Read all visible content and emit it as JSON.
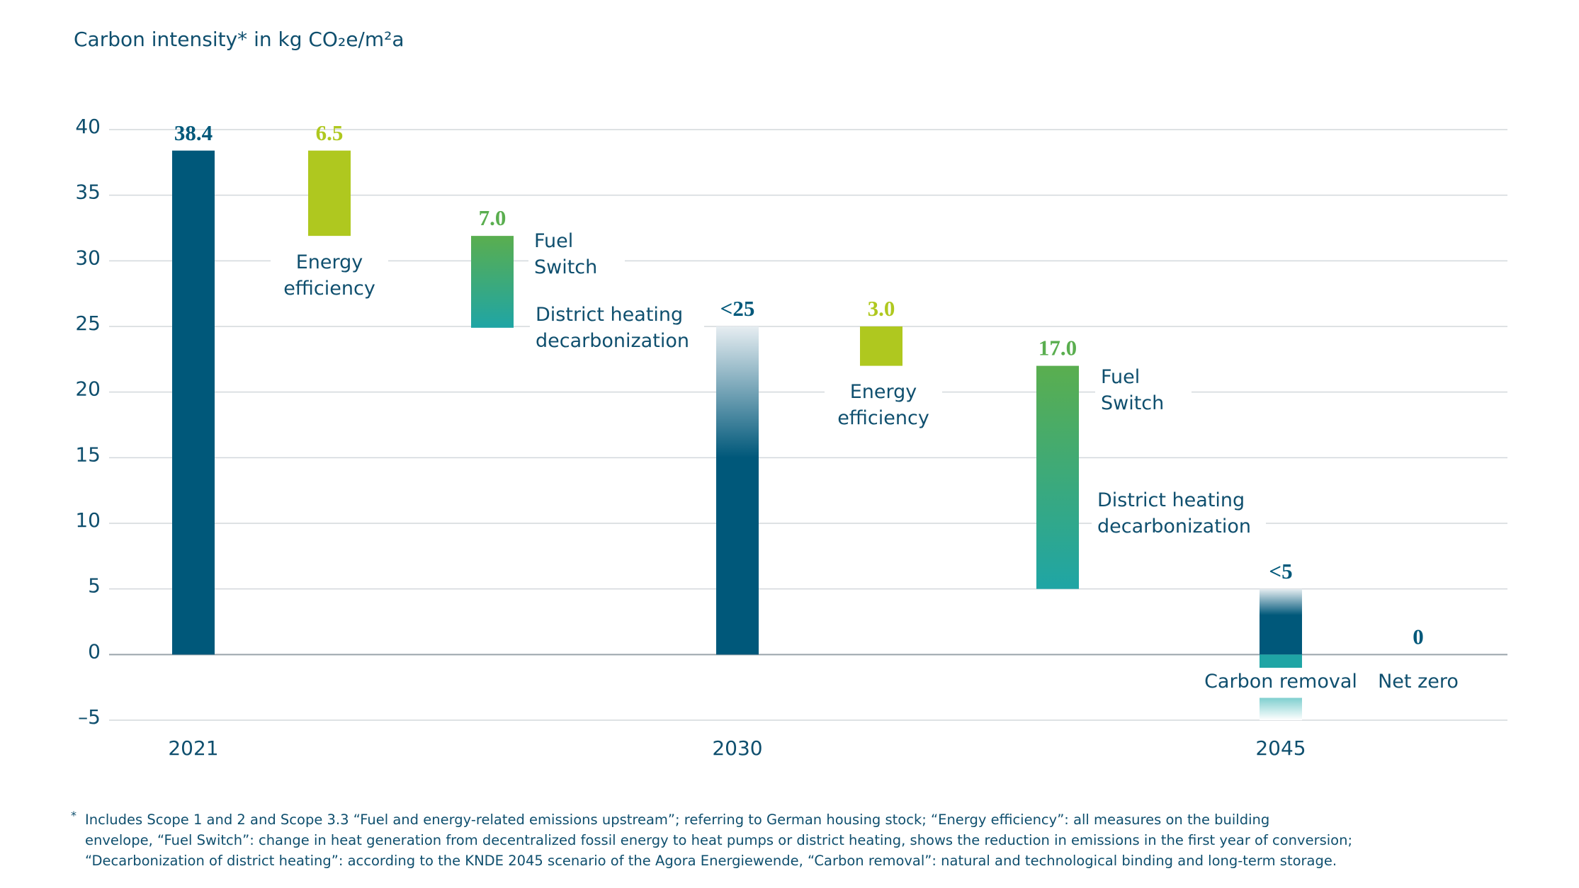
{
  "chart_data": {
    "type": "waterfall",
    "title": "Carbon intensity* in kg CO₂e/m²a",
    "categories": [
      "2021",
      null,
      null,
      "2030",
      null,
      null,
      "2045",
      null
    ],
    "values": [
      38.4,
      6.5,
      7.0,
      25,
      3.0,
      17.0,
      5,
      0
    ],
    "value_labels": [
      "38.4",
      "6.5",
      "7.0",
      "<25",
      "3.0",
      "17.0",
      "<5",
      "0"
    ],
    "kinds": [
      "total",
      "decrease",
      "decrease",
      "total",
      "decrease",
      "decrease",
      "total",
      "total"
    ],
    "colors": [
      "#00587a",
      "#afc81f",
      [
        "#5aae4f",
        "#1fa5a5"
      ],
      [
        "#e6edf1",
        "#00587a"
      ],
      "#afc81f",
      [
        "#5aae4f",
        "#1fa5a5"
      ],
      [
        "#e6edf1",
        "#00587a"
      ],
      "#00587a"
    ],
    "label_colors": [
      "#00587a",
      "#afc81f",
      "#5aae4f",
      "#00587a",
      "#afc81f",
      "#5aae4f",
      "#00587a",
      "#00587a"
    ],
    "notes": [
      [],
      [
        "Energy efficiency"
      ],
      [
        "Fuel Switch",
        "District heating decarbonization"
      ],
      [],
      [
        "Energy efficiency"
      ],
      [
        "Fuel Switch",
        "District heating decarbonization"
      ],
      [
        "Carbon removal"
      ],
      [
        "Net zero"
      ]
    ],
    "ylim": [
      -5,
      40
    ],
    "yticks": [
      {
        "value": -5,
        "label": "–5"
      },
      0,
      5,
      10,
      15,
      20,
      25,
      30,
      35,
      40
    ],
    "grid": true,
    "footnote": {
      "marker": "*",
      "lines": [
        "Includes Scope 1 and 2 and Scope 3.3 “Fuel and energy-related emissions upstream”; referring to German housing stock; “Energy efficiency”: all measures on the building",
        "envelope, “Fuel Switch”: change in heat generation from decentralized fossil energy to heat pumps or district heating, shows the reduction in emissions in the first year of conversion;",
        "“Decarbonization of district heating”: according to the KNDE 2045 scenario of the Agora Energiewende, “Carbon removal”: natural and technological binding and long-term storage."
      ]
    }
  }
}
